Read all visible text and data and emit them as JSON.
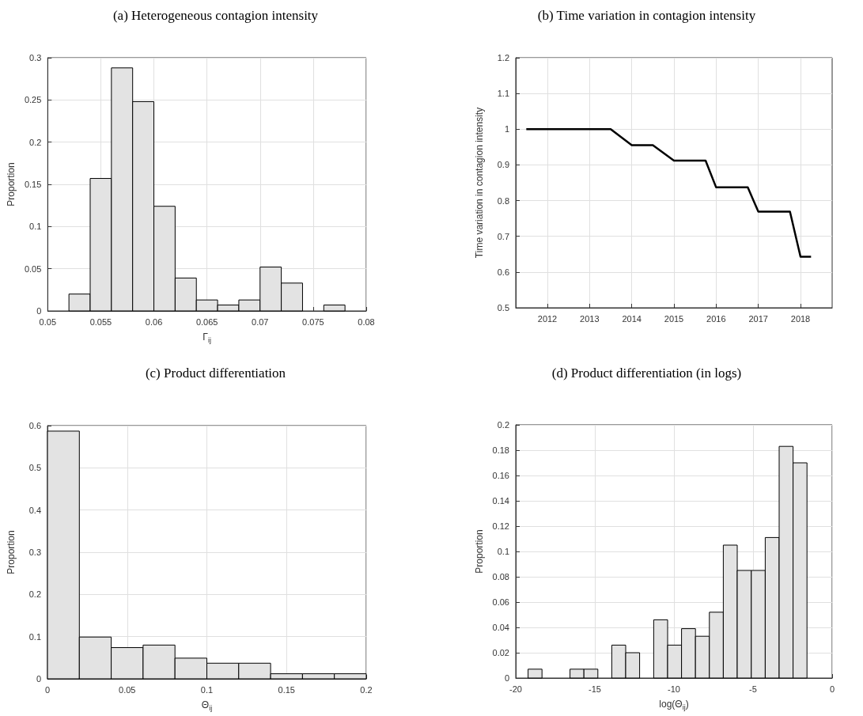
{
  "chart_data": [
    {
      "type": "histogram",
      "title": "(a) Heterogeneous contagion intensity",
      "xlabel": "Γ$_{ij}$",
      "ylabel": "Proportion",
      "color": "#e3e3e3",
      "grid": true,
      "bins": [
        0.052,
        0.054,
        0.056,
        0.058,
        0.06,
        0.062,
        0.064,
        0.066,
        0.068,
        0.07,
        0.072,
        0.074,
        0.076,
        0.078
      ],
      "values": [
        0.02,
        0.157,
        0.288,
        0.248,
        0.124,
        0.039,
        0.013,
        0.007,
        0.013,
        0.052,
        0.033,
        0,
        0.007
      ],
      "xlim": [
        0.05,
        0.08
      ],
      "xticks": [
        0.05,
        0.055,
        0.06,
        0.065,
        0.07,
        0.075,
        0.08
      ],
      "ylim": [
        0,
        0.3
      ],
      "yticks": [
        0,
        0.05,
        0.1,
        0.15,
        0.2,
        0.25,
        0.3
      ]
    },
    {
      "type": "line",
      "title": "(b) Time variation in contagion intensity",
      "ylabel": "Time variation in contagion intensity",
      "grid": true,
      "marker": "none",
      "line_style": "solid",
      "series": [
        {
          "color": "#000000",
          "x": [
            2011.5,
            2013.5,
            2014,
            2014.5,
            2015,
            2015.75,
            2016,
            2016.75,
            2017,
            2017.75,
            2018,
            2018.25
          ],
          "values": [
            1,
            1,
            0.955,
            0.955,
            0.912,
            0.912,
            0.837,
            0.837,
            0.769,
            0.769,
            0.643,
            0.643
          ]
        }
      ],
      "xlim": [
        2011.25,
        2018.75
      ],
      "xticks": [
        2012,
        2013,
        2014,
        2015,
        2016,
        2017,
        2018
      ],
      "ylim": [
        0.5,
        1.2
      ],
      "yticks": [
        0.5,
        0.6,
        0.7,
        0.8,
        0.9,
        1,
        1.1,
        1.2
      ]
    },
    {
      "type": "histogram",
      "title": "(c) Product differentiation",
      "xlabel": "Θ$_{ij}$",
      "ylabel": "Proportion",
      "color": "#e3e3e3",
      "grid": true,
      "bins": [
        0,
        0.02,
        0.04,
        0.06,
        0.08,
        0.1,
        0.12,
        0.14,
        0.16,
        0.18,
        0.2
      ],
      "values": [
        0.587,
        0.099,
        0.074,
        0.08,
        0.049,
        0.037,
        0.037,
        0.012,
        0.012,
        0.012
      ],
      "xlim": [
        0,
        0.2
      ],
      "xticks": [
        0,
        0.05,
        0.1,
        0.15,
        0.2
      ],
      "ylim": [
        0,
        0.6
      ],
      "yticks": [
        0,
        0.1,
        0.2,
        0.3,
        0.4,
        0.5,
        0.6
      ]
    },
    {
      "type": "histogram",
      "title": "(d) Product differentiation (in logs)",
      "xlabel": "log(Θ$_{ij}$)",
      "ylabel": "Proportion",
      "color": "#e3e3e3",
      "grid": true,
      "bins": [
        -19.22,
        -18.34,
        -17.46,
        -16.57,
        -15.69,
        -14.81,
        -13.93,
        -13.05,
        -12.17,
        -11.28,
        -10.4,
        -9.52,
        -8.64,
        -7.76,
        -6.88,
        -6,
        -5.11,
        -4.23,
        -3.35,
        -2.47,
        -1.59
      ],
      "values": [
        0.007,
        0,
        0,
        0.007,
        0.007,
        0,
        0.026,
        0.02,
        0,
        0.046,
        0.026,
        0.039,
        0.033,
        0.052,
        0.105,
        0.085,
        0.085,
        0.111,
        0.183,
        0.17
      ],
      "xlim": [
        -20,
        0
      ],
      "xticks": [
        -20,
        -15,
        -10,
        -5,
        0
      ],
      "ylim": [
        0,
        0.2
      ],
      "yticks": [
        0,
        0.02,
        0.04,
        0.06,
        0.08,
        0.1,
        0.12,
        0.14,
        0.16,
        0.18,
        0.2
      ]
    }
  ]
}
